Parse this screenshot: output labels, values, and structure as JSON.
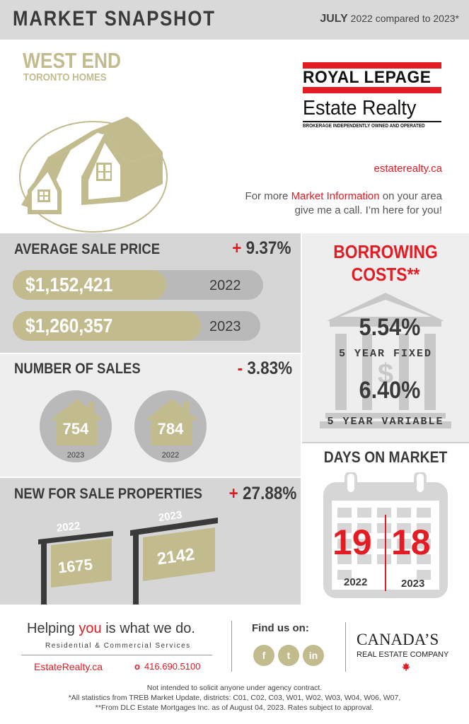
{
  "header": {
    "title": "MARKET SNAPSHOT",
    "month": "JULY",
    "comparison": "2022 compared to 2023*"
  },
  "region": {
    "title": "WEST END",
    "subtitle": "TORONTO HOMES"
  },
  "logo": {
    "brand": "ROYAL LEPAGE",
    "office": "Estate Realty",
    "tagline": "BROKERAGE INDEPENDENTLY OWNED AND OPERATED"
  },
  "contact": {
    "website": "estaterealty.ca",
    "promo_prefix": "For more ",
    "promo_highlight": "Market Information",
    "promo_suffix": " on your area give me a call. I’m here for you!"
  },
  "average_sale_price": {
    "title": "AVERAGE SALE PRICE",
    "sign": "+",
    "change": "9.37%",
    "rows": [
      {
        "value": "$1,152,421",
        "year": "2022",
        "fill": 0.62
      },
      {
        "value": "$1,260,357",
        "year": "2023",
        "fill": 0.76
      }
    ]
  },
  "number_of_sales": {
    "title": "NUMBER OF SALES",
    "sign": "-",
    "change": "3.83%",
    "items": [
      {
        "value": "754",
        "year": "2023"
      },
      {
        "value": "784",
        "year": "2022"
      }
    ]
  },
  "new_for_sale": {
    "title": "NEW FOR SALE PROPERTIES",
    "sign": "+",
    "change": "27.88%",
    "items": [
      {
        "year": "2022",
        "value": "1675"
      },
      {
        "year": "2023",
        "value": "2142"
      }
    ]
  },
  "borrowing": {
    "title_line1": "BORROWING",
    "title_line2": "COSTS**",
    "rate1": "5.54%",
    "label1": "5 YEAR FIXED",
    "rate2": "6.40%",
    "label2": "5 YEAR VARIABLE"
  },
  "days_on_market": {
    "title": "DAYS ON MARKET",
    "value_2022": "19",
    "year_2022": "2022",
    "value_2023": "18",
    "year_2023": "2023"
  },
  "footer": {
    "tagline_prefix": "Helping ",
    "tagline_you": "you",
    "tagline_suffix": " is what we do.",
    "services": "Residential & Commercial Services",
    "website": "EstateRealty.ca",
    "phone_icon": "o",
    "phone": "416.690.5100",
    "find_us": "Find us on:",
    "social": [
      {
        "icon": "facebook-icon",
        "glyph": "f"
      },
      {
        "icon": "twitter-icon",
        "glyph": "t"
      },
      {
        "icon": "linkedin-icon",
        "glyph": "in"
      }
    ],
    "company_title": "CANADA’S",
    "company_sub": "REAL ESTATE COMPANY"
  },
  "disclaimer": {
    "line1": "Not intended to solicit anyone under agency contract.",
    "line2": "*All statistics from TREB Market Update, districts: C01, C02, C03, W01, W02, W03, W04, W06, W07,",
    "line3": "**From DLC Estate Mortgages Inc. as of August 04, 2023. Rates subject to approval."
  },
  "colors": {
    "accent_red": "#e31b23",
    "gold": "#c2bb8d",
    "panel_gray": "#d6d6d6",
    "light_gray": "#eeeeee",
    "text_dark": "#3a3a3a"
  }
}
